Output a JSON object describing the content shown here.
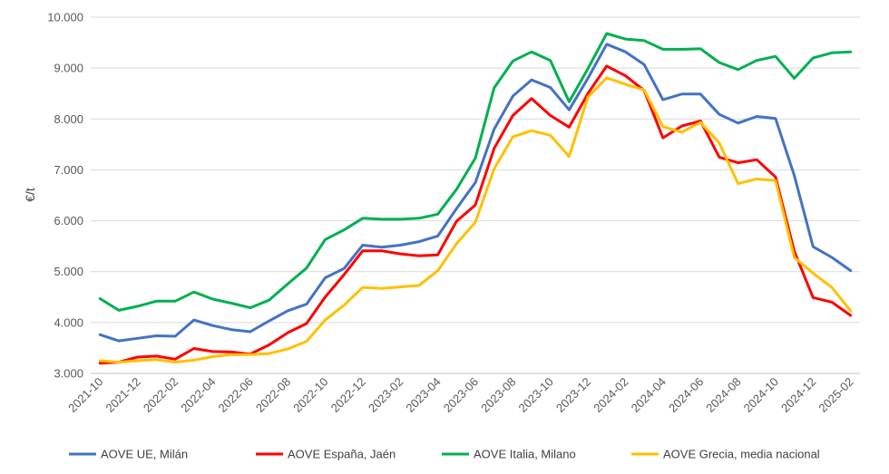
{
  "chart_data": {
    "type": "line",
    "title": "",
    "xlabel": "",
    "ylabel": "€/t",
    "ylim": [
      3000,
      10000
    ],
    "y_ticks": [
      "3.000",
      "4.000",
      "5.000",
      "6.000",
      "7.000",
      "8.000",
      "9.000",
      "10.000"
    ],
    "y_tick_values": [
      3000,
      4000,
      5000,
      6000,
      7000,
      8000,
      9000,
      10000
    ],
    "x_tick_labels": [
      "2021-10",
      "2021-12",
      "2022-02",
      "2022-04",
      "2022-06",
      "2022-08",
      "2022-10",
      "2022-12",
      "2023-02",
      "2023-04",
      "2023-06",
      "2023-08",
      "2023-10",
      "2023-12",
      "2024-02",
      "2024-04",
      "2024-06",
      "2024-08",
      "2024-10",
      "2024-12",
      "2025-02"
    ],
    "grid": "horizontal",
    "legend_position": "bottom",
    "x": [
      "2021-10",
      "2021-11",
      "2021-12",
      "2022-01",
      "2022-02",
      "2022-03",
      "2022-04",
      "2022-05",
      "2022-06",
      "2022-07",
      "2022-08",
      "2022-09",
      "2022-10",
      "2022-11",
      "2022-12",
      "2023-01",
      "2023-02",
      "2023-03",
      "2023-04",
      "2023-05",
      "2023-06",
      "2023-07",
      "2023-08",
      "2023-09",
      "2023-10",
      "2023-11",
      "2023-12",
      "2024-01",
      "2024-02",
      "2024-03",
      "2024-04",
      "2024-05",
      "2024-06",
      "2024-07",
      "2024-08",
      "2024-09",
      "2024-10",
      "2024-11",
      "2024-12",
      "2025-01",
      "2025-02"
    ],
    "series": [
      {
        "name": "AOVE UE, Milán",
        "color": "#4472C4",
        "values": [
          3760,
          3640,
          3690,
          3740,
          3730,
          4050,
          3940,
          3860,
          3820,
          4030,
          4230,
          4360,
          4880,
          5060,
          5520,
          5480,
          5520,
          5590,
          5700,
          6240,
          6750,
          7800,
          8450,
          8770,
          8620,
          8180,
          8800,
          9470,
          9320,
          9070,
          8380,
          8490,
          8490,
          8090,
          7920,
          8050,
          8010,
          6890,
          5490,
          5280,
          5020
        ]
      },
      {
        "name": "AOVE España, Jaén",
        "color": "#FF0000",
        "values": [
          3200,
          3220,
          3320,
          3340,
          3280,
          3490,
          3430,
          3420,
          3380,
          3560,
          3800,
          3980,
          4500,
          4940,
          5410,
          5410,
          5350,
          5310,
          5330,
          5990,
          6310,
          7420,
          8070,
          8400,
          8070,
          7840,
          8500,
          9040,
          8850,
          8560,
          7630,
          7860,
          7960,
          7250,
          7140,
          7200,
          6860,
          5400,
          4490,
          4400,
          4140
        ]
      },
      {
        "name": "AOVE Italia, Milano",
        "color": "#00B050",
        "values": [
          4470,
          4240,
          4320,
          4420,
          4420,
          4600,
          4460,
          4380,
          4290,
          4440,
          4760,
          5070,
          5630,
          5820,
          6050,
          6030,
          6030,
          6050,
          6130,
          6620,
          7230,
          8610,
          9140,
          9320,
          9150,
          8340,
          8990,
          9680,
          9570,
          9540,
          9370,
          9370,
          9380,
          9110,
          8970,
          9150,
          9230,
          8800,
          9200,
          9300,
          9320
        ]
      },
      {
        "name": "AOVE Grecia, media nacional",
        "color": "#FFC000",
        "values": [
          3250,
          3220,
          3250,
          3270,
          3220,
          3260,
          3330,
          3370,
          3370,
          3390,
          3480,
          3630,
          4050,
          4340,
          4690,
          4670,
          4700,
          4730,
          5020,
          5550,
          5970,
          7020,
          7650,
          7770,
          7680,
          7260,
          8430,
          8810,
          8680,
          8570,
          7850,
          7740,
          7930,
          7530,
          6730,
          6820,
          6790,
          5280,
          4970,
          4690,
          4230
        ]
      }
    ]
  }
}
